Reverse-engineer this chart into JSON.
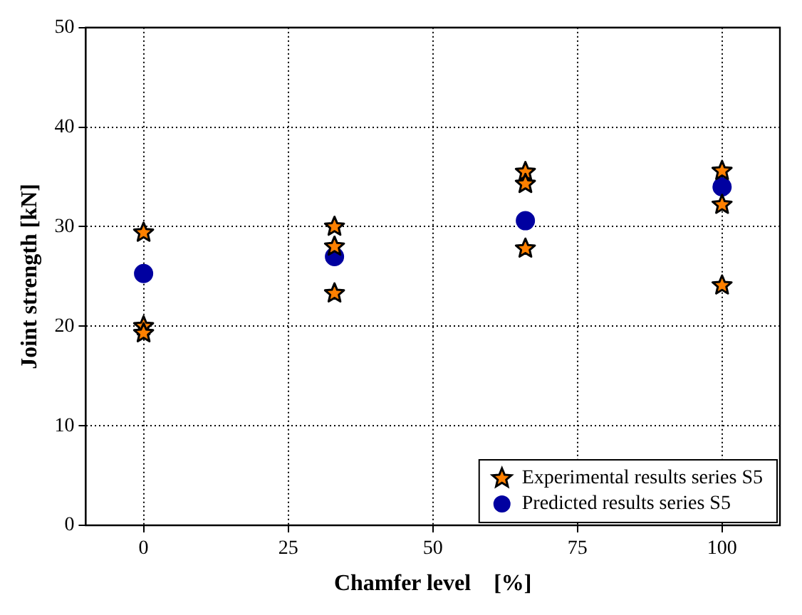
{
  "chart_data": {
    "type": "scatter",
    "xlabel": "Chamfer level    [%]",
    "ylabel": "Joint strength [kN]",
    "xlim": [
      -10,
      110
    ],
    "xticks": [
      0,
      25,
      50,
      75,
      100
    ],
    "ylim": [
      0,
      50
    ],
    "yticks": [
      0,
      10,
      20,
      30,
      40,
      50
    ],
    "grid": true,
    "legend": "bottom right",
    "series": [
      {
        "name": "Experimental results series S5",
        "color": "#ff8000",
        "marker": "star",
        "x": [
          0,
          0,
          0,
          33,
          33,
          33,
          66,
          66,
          66,
          100,
          100,
          100
        ],
        "values": [
          29.4,
          20,
          19.3,
          30,
          28,
          23.3,
          35.5,
          34.3,
          27.8,
          35.6,
          32.2,
          24.1
        ]
      },
      {
        "name": "Predicted results series S5",
        "color": "#0000a0",
        "marker": "circle",
        "x": [
          0,
          33,
          66,
          100
        ],
        "values": [
          25.3,
          27,
          30.6,
          34
        ]
      }
    ]
  }
}
